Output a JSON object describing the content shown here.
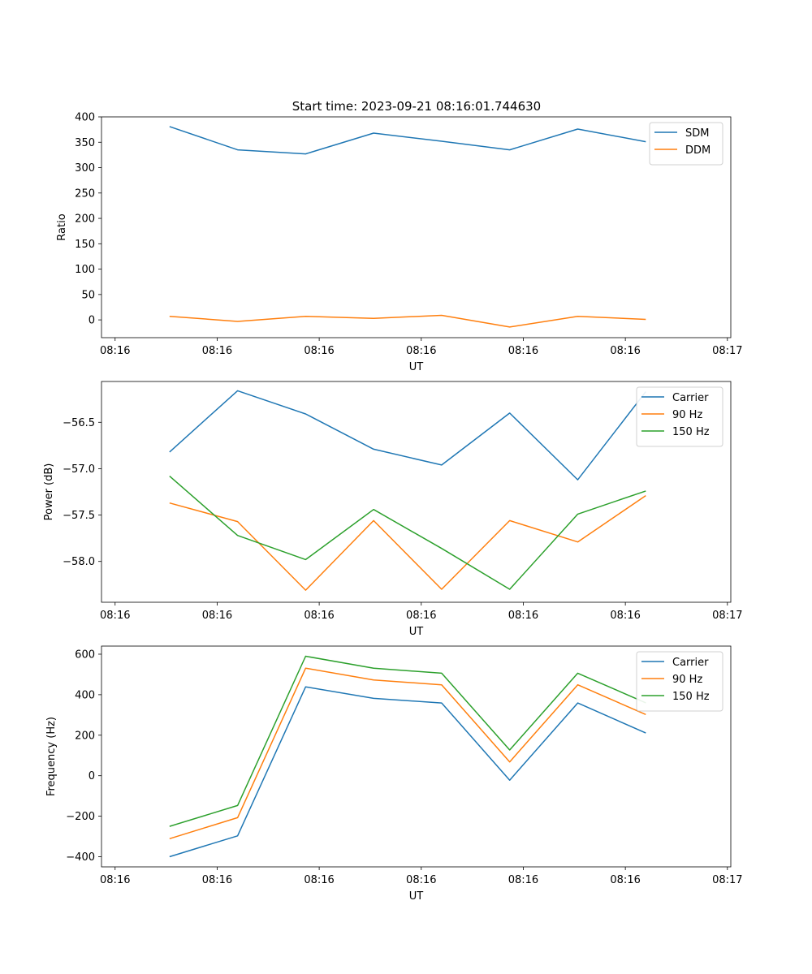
{
  "title": "Start time: 2023-09-21 08:16:01.744630",
  "colors": {
    "blue": "#1f77b4",
    "orange": "#ff7f0e",
    "green": "#2ca02c"
  },
  "chart_data": [
    {
      "type": "line",
      "xlabel": "UT",
      "ylabel": "Ratio",
      "xlim": [
        -0.5,
        8.75
      ],
      "ylim": [
        -35,
        400
      ],
      "x": [
        0.5,
        1.5,
        2.5,
        3.5,
        4.5,
        5.5,
        6.5,
        7.5
      ],
      "xticks": [
        -0.3,
        1.2,
        2.7,
        4.2,
        5.7,
        7.2,
        8.7
      ],
      "xtick_labels": [
        "08:16",
        "08:16",
        "08:16",
        "08:16",
        "08:16",
        "08:16",
        "08:17"
      ],
      "yticks": [
        0,
        50,
        100,
        150,
        200,
        250,
        300,
        350,
        400
      ],
      "ytick_labels": [
        "0",
        "50",
        "100",
        "150",
        "200",
        "250",
        "300",
        "350",
        "400"
      ],
      "legend_position": "top-right",
      "series": [
        {
          "name": "SDM",
          "color": "#1f77b4",
          "values": [
            381,
            335,
            327,
            368,
            352,
            335,
            376,
            351
          ]
        },
        {
          "name": "DDM",
          "color": "#ff7f0e",
          "values": [
            7,
            -3,
            7,
            3,
            9,
            -14,
            7,
            1
          ]
        }
      ]
    },
    {
      "type": "line",
      "xlabel": "UT",
      "ylabel": "Power (dB)",
      "xlim": [
        -0.5,
        8.75
      ],
      "ylim": [
        -58.44,
        -56.06
      ],
      "x": [
        0.5,
        1.5,
        2.5,
        3.5,
        4.5,
        5.5,
        6.5,
        7.5
      ],
      "xticks": [
        -0.3,
        1.2,
        2.7,
        4.2,
        5.7,
        7.2,
        8.7
      ],
      "xtick_labels": [
        "08:16",
        "08:16",
        "08:16",
        "08:16",
        "08:16",
        "08:16",
        "08:17"
      ],
      "yticks": [
        -56.5,
        -57.0,
        -57.5,
        -58.0
      ],
      "ytick_labels": [
        "−56.5",
        "−57.0",
        "−57.5",
        "−58.0"
      ],
      "legend_position": "top-right",
      "series": [
        {
          "name": "Carrier",
          "color": "#1f77b4",
          "values": [
            -56.82,
            -56.16,
            -56.41,
            -56.79,
            -56.96,
            -56.4,
            -57.12,
            -56.17
          ]
        },
        {
          "name": "90 Hz",
          "color": "#ff7f0e",
          "values": [
            -57.37,
            -57.57,
            -58.31,
            -57.56,
            -58.3,
            -57.56,
            -57.79,
            -57.29
          ]
        },
        {
          "name": "150 Hz",
          "color": "#2ca02c",
          "values": [
            -57.08,
            -57.72,
            -57.98,
            -57.44,
            -57.86,
            -58.3,
            -57.49,
            -57.24
          ]
        }
      ]
    },
    {
      "type": "line",
      "xlabel": "UT",
      "ylabel": "Frequency (Hz)",
      "xlim": [
        -0.5,
        8.75
      ],
      "ylim": [
        -450,
        640
      ],
      "x": [
        0.5,
        1.5,
        2.5,
        3.5,
        4.5,
        5.5,
        6.5,
        7.5
      ],
      "xticks": [
        -0.3,
        1.2,
        2.7,
        4.2,
        5.7,
        7.2,
        8.7
      ],
      "xtick_labels": [
        "08:16",
        "08:16",
        "08:16",
        "08:16",
        "08:16",
        "08:16",
        "08:17"
      ],
      "yticks": [
        -400,
        -200,
        0,
        200,
        400,
        600
      ],
      "ytick_labels": [
        "−400",
        "−200",
        "0",
        "200",
        "400",
        "600"
      ],
      "legend_position": "top-right",
      "series": [
        {
          "name": "Carrier",
          "color": "#1f77b4",
          "values": [
            -400,
            -297,
            439,
            382,
            359,
            -22,
            359,
            211
          ]
        },
        {
          "name": "90 Hz",
          "color": "#ff7f0e",
          "values": [
            -311,
            -207,
            531,
            473,
            449,
            68,
            449,
            302
          ]
        },
        {
          "name": "150 Hz",
          "color": "#2ca02c",
          "values": [
            -250,
            -147,
            590,
            531,
            506,
            127,
            506,
            360
          ]
        }
      ]
    }
  ]
}
